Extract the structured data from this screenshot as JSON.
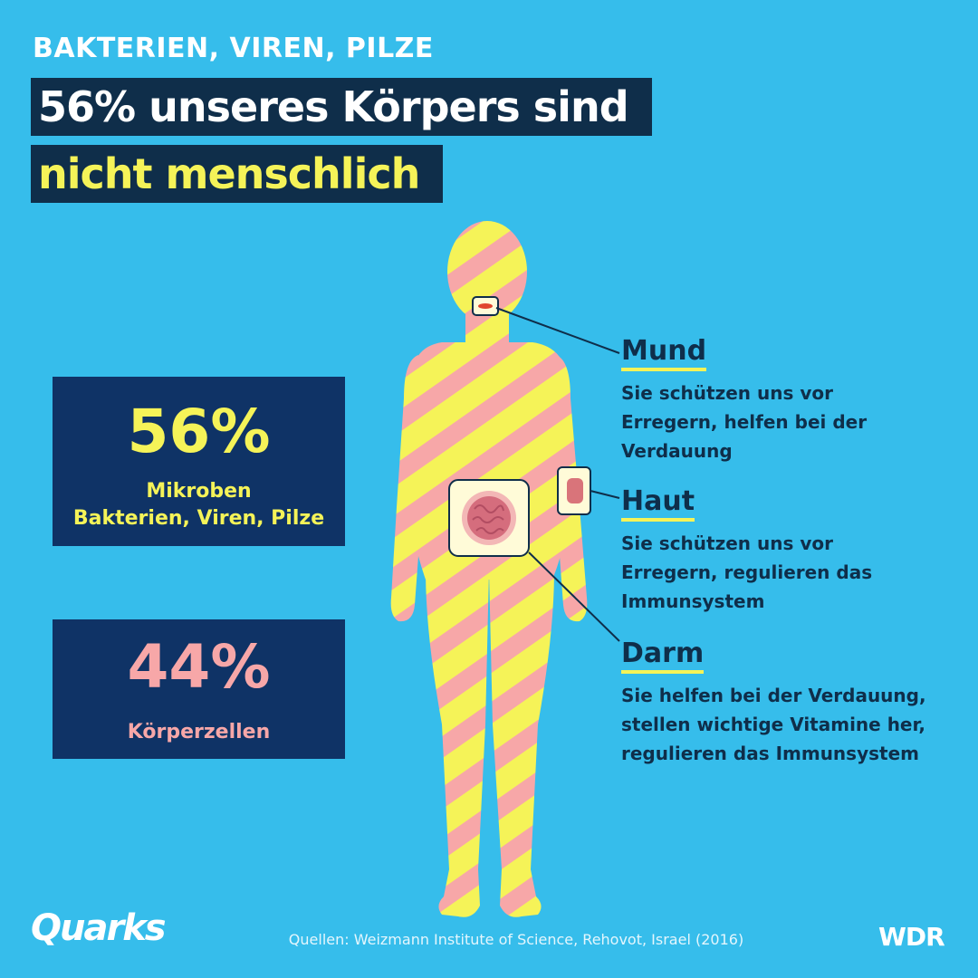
{
  "header": {
    "kicker": "BAKTERIEN, VIREN, PILZE",
    "title_line1": "56% unseres Körpers sind",
    "title_line2": "nicht menschlich"
  },
  "stats": {
    "microbes": {
      "value": "56%",
      "label_line1": "Mikroben",
      "label_line2": "Bakterien, Viren, Pilze"
    },
    "cells": {
      "value": "44%",
      "label": "Körperzellen"
    }
  },
  "annotations": {
    "mund": {
      "title": "Mund",
      "lines": [
        "Sie schützen uns vor",
        "Erregern, helfen bei der",
        "Verdauung"
      ]
    },
    "haut": {
      "title": "Haut",
      "lines": [
        "Sie schützen uns vor",
        "Erregern, regulieren das",
        "Immunsystem"
      ]
    },
    "darm": {
      "title": "Darm",
      "lines": [
        "Sie helfen bei der Verdauung,",
        "stellen wichtige Vitamine her,",
        "regulieren das Immunsystem"
      ]
    }
  },
  "footer": {
    "brand": "Quarks",
    "source": "Quellen: Weizmann Institute of Science, Rehovot, Israel (2016)",
    "broadcaster": "WDR"
  },
  "colors": {
    "background": "#36bdeb",
    "navy": "#0f2e4a",
    "yellow": "#f5f358",
    "pink": "#f7a7a8"
  }
}
